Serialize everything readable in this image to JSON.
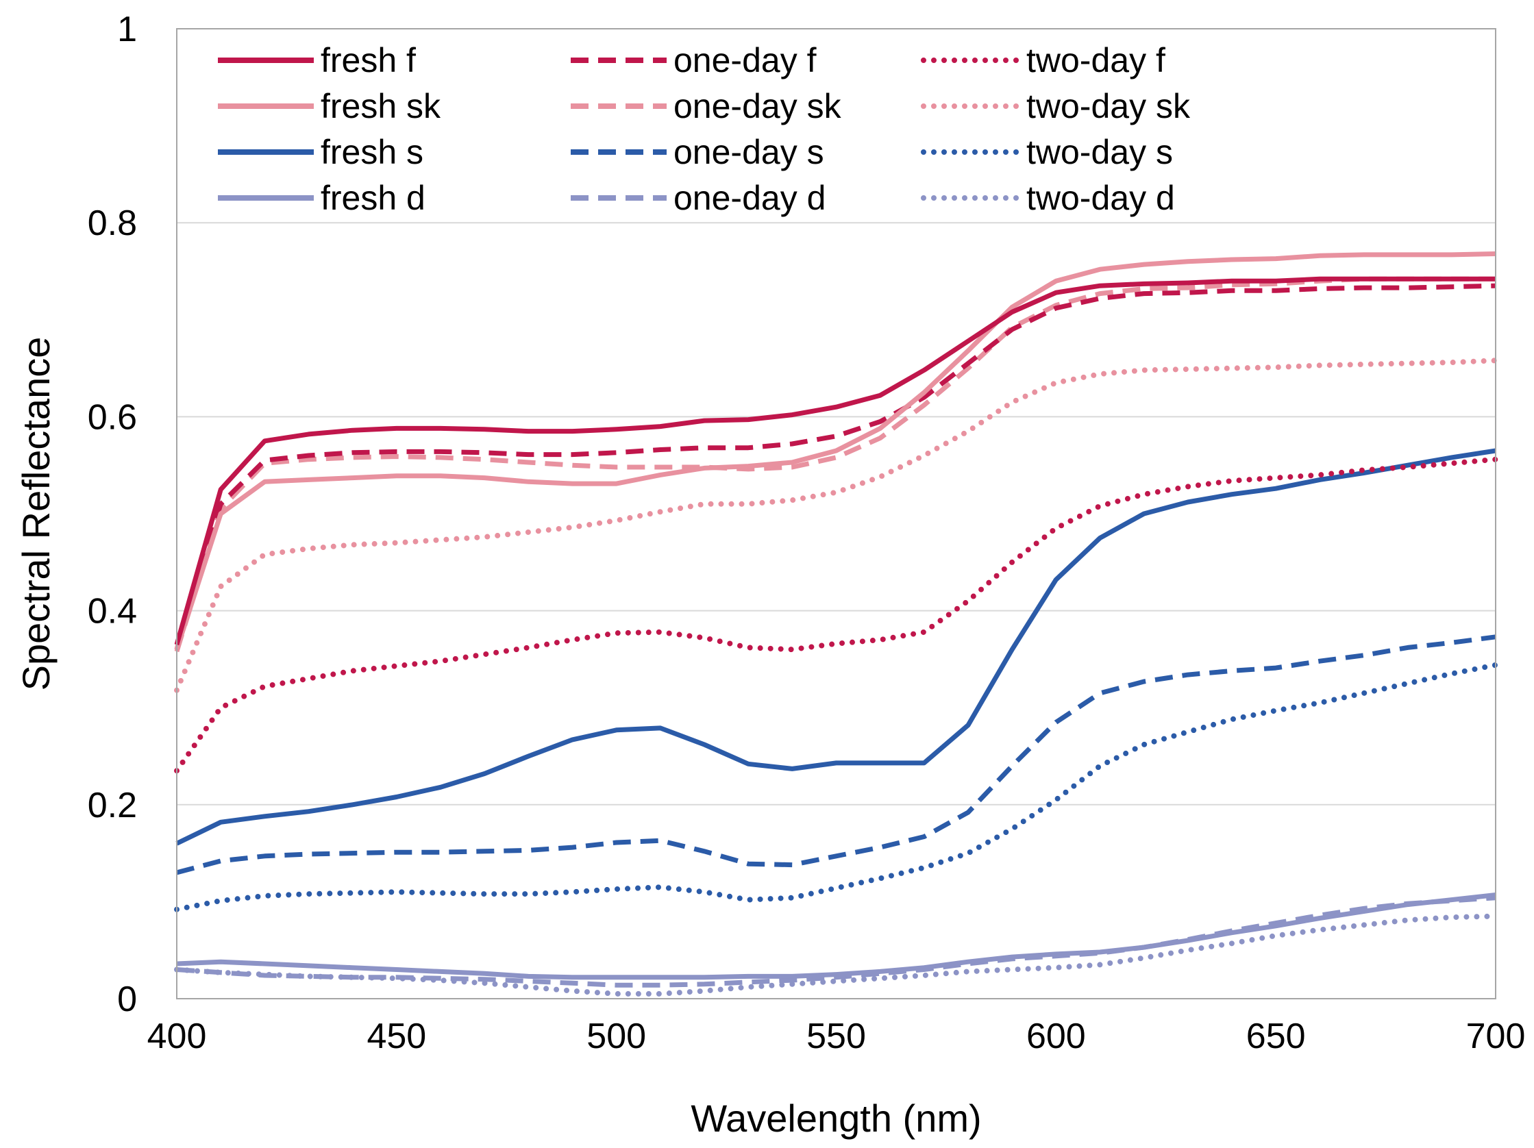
{
  "chart_data": {
    "type": "line",
    "title": "",
    "xlabel": "Wavelength (nm)",
    "ylabel": "Spectral Reflectance",
    "xlim": [
      400,
      700
    ],
    "ylim": [
      0,
      1
    ],
    "x_ticks": [
      "400",
      "450",
      "500",
      "550",
      "600",
      "650",
      "700"
    ],
    "y_ticks": [
      "0",
      "0.2",
      "0.4",
      "0.6",
      "0.8",
      "1"
    ],
    "grid": "horizontal",
    "legend_position": "top-left",
    "x": [
      400,
      410,
      420,
      430,
      440,
      450,
      460,
      470,
      480,
      490,
      500,
      510,
      520,
      530,
      540,
      550,
      560,
      570,
      580,
      590,
      600,
      610,
      620,
      630,
      640,
      650,
      660,
      670,
      680,
      690,
      700
    ],
    "series": [
      {
        "name": "fresh f",
        "color": "#c0164b",
        "style": "solid",
        "values": [
          0.365,
          0.525,
          0.575,
          0.582,
          0.586,
          0.588,
          0.588,
          0.587,
          0.585,
          0.585,
          0.587,
          0.59,
          0.596,
          0.597,
          0.602,
          0.61,
          0.622,
          0.648,
          0.678,
          0.708,
          0.728,
          0.735,
          0.737,
          0.738,
          0.74,
          0.74,
          0.742,
          0.742,
          0.742,
          0.742,
          0.742
        ]
      },
      {
        "name": "one-day f",
        "color": "#c0164b",
        "style": "dashed",
        "values": [
          0.36,
          0.51,
          0.555,
          0.56,
          0.563,
          0.564,
          0.564,
          0.563,
          0.561,
          0.561,
          0.563,
          0.566,
          0.568,
          0.568,
          0.572,
          0.58,
          0.595,
          0.62,
          0.655,
          0.69,
          0.712,
          0.722,
          0.727,
          0.728,
          0.73,
          0.73,
          0.732,
          0.733,
          0.733,
          0.734,
          0.735
        ]
      },
      {
        "name": "two-day f",
        "color": "#c0164b",
        "style": "dotted",
        "values": [
          0.235,
          0.3,
          0.322,
          0.33,
          0.338,
          0.343,
          0.348,
          0.355,
          0.362,
          0.37,
          0.377,
          0.378,
          0.372,
          0.362,
          0.36,
          0.366,
          0.37,
          0.378,
          0.41,
          0.45,
          0.485,
          0.508,
          0.52,
          0.528,
          0.534,
          0.537,
          0.54,
          0.545,
          0.548,
          0.552,
          0.556
        ]
      },
      {
        "name": "fresh sk",
        "color": "#e8919f",
        "style": "solid",
        "values": [
          0.36,
          0.5,
          0.533,
          0.535,
          0.537,
          0.539,
          0.539,
          0.537,
          0.533,
          0.531,
          0.531,
          0.54,
          0.547,
          0.549,
          0.553,
          0.565,
          0.588,
          0.625,
          0.668,
          0.713,
          0.74,
          0.752,
          0.757,
          0.76,
          0.762,
          0.763,
          0.766,
          0.767,
          0.767,
          0.767,
          0.768
        ]
      },
      {
        "name": "one-day sk",
        "color": "#e8919f",
        "style": "dashed",
        "values": [
          0.358,
          0.505,
          0.552,
          0.556,
          0.558,
          0.559,
          0.558,
          0.556,
          0.553,
          0.55,
          0.548,
          0.548,
          0.548,
          0.546,
          0.548,
          0.558,
          0.578,
          0.612,
          0.65,
          0.692,
          0.715,
          0.727,
          0.732,
          0.733,
          0.736,
          0.737,
          0.74,
          0.742,
          0.742,
          0.742,
          0.742
        ]
      },
      {
        "name": "two-day sk",
        "color": "#e8919f",
        "style": "dotted",
        "values": [
          0.318,
          0.425,
          0.458,
          0.464,
          0.468,
          0.47,
          0.473,
          0.476,
          0.481,
          0.486,
          0.493,
          0.502,
          0.51,
          0.51,
          0.514,
          0.522,
          0.538,
          0.56,
          0.585,
          0.615,
          0.635,
          0.644,
          0.648,
          0.649,
          0.65,
          0.651,
          0.653,
          0.654,
          0.655,
          0.656,
          0.658
        ]
      },
      {
        "name": "fresh s",
        "color": "#2b5ba8",
        "style": "solid",
        "values": [
          0.16,
          0.182,
          0.188,
          0.193,
          0.2,
          0.208,
          0.218,
          0.232,
          0.25,
          0.267,
          0.277,
          0.279,
          0.262,
          0.242,
          0.237,
          0.243,
          0.243,
          0.243,
          0.282,
          0.36,
          0.432,
          0.475,
          0.5,
          0.512,
          0.52,
          0.526,
          0.535,
          0.542,
          0.55,
          0.558,
          0.565
        ]
      },
      {
        "name": "one-day s",
        "color": "#2b5ba8",
        "style": "dashed",
        "values": [
          0.13,
          0.142,
          0.147,
          0.149,
          0.15,
          0.151,
          0.151,
          0.152,
          0.153,
          0.156,
          0.161,
          0.163,
          0.152,
          0.139,
          0.138,
          0.147,
          0.156,
          0.167,
          0.192,
          0.24,
          0.285,
          0.315,
          0.327,
          0.334,
          0.338,
          0.341,
          0.348,
          0.354,
          0.362,
          0.367,
          0.373
        ]
      },
      {
        "name": "two-day s",
        "color": "#2b5ba8",
        "style": "dotted",
        "values": [
          0.092,
          0.101,
          0.106,
          0.108,
          0.109,
          0.11,
          0.109,
          0.108,
          0.108,
          0.11,
          0.113,
          0.115,
          0.11,
          0.102,
          0.104,
          0.114,
          0.124,
          0.135,
          0.15,
          0.175,
          0.205,
          0.24,
          0.262,
          0.275,
          0.288,
          0.297,
          0.305,
          0.315,
          0.325,
          0.335,
          0.344
        ]
      },
      {
        "name": "fresh d",
        "color": "#8c93c6",
        "style": "solid",
        "values": [
          0.036,
          0.038,
          0.036,
          0.034,
          0.032,
          0.03,
          0.028,
          0.026,
          0.023,
          0.022,
          0.022,
          0.022,
          0.022,
          0.023,
          0.023,
          0.025,
          0.028,
          0.032,
          0.038,
          0.043,
          0.046,
          0.048,
          0.053,
          0.06,
          0.068,
          0.075,
          0.083,
          0.09,
          0.097,
          0.102,
          0.107
        ]
      },
      {
        "name": "one-day d",
        "color": "#8c93c6",
        "style": "dashed",
        "values": [
          0.03,
          0.027,
          0.024,
          0.023,
          0.022,
          0.022,
          0.021,
          0.02,
          0.018,
          0.016,
          0.014,
          0.014,
          0.015,
          0.017,
          0.019,
          0.022,
          0.026,
          0.03,
          0.036,
          0.041,
          0.044,
          0.047,
          0.053,
          0.061,
          0.07,
          0.078,
          0.086,
          0.093,
          0.098,
          0.101,
          0.104
        ]
      },
      {
        "name": "two-day d",
        "color": "#8c93c6",
        "style": "dotted",
        "values": [
          0.03,
          0.027,
          0.025,
          0.023,
          0.022,
          0.021,
          0.019,
          0.016,
          0.012,
          0.008,
          0.005,
          0.005,
          0.008,
          0.012,
          0.015,
          0.018,
          0.021,
          0.024,
          0.028,
          0.03,
          0.032,
          0.035,
          0.042,
          0.05,
          0.057,
          0.065,
          0.071,
          0.076,
          0.081,
          0.084,
          0.085
        ]
      }
    ],
    "legend_order": [
      [
        "fresh f",
        "one-day f",
        "two-day f"
      ],
      [
        "fresh sk",
        "one-day sk",
        "two-day sk"
      ],
      [
        "fresh s",
        "one-day s",
        "two-day s"
      ],
      [
        "fresh d",
        "one-day d",
        "two-day d"
      ]
    ]
  }
}
